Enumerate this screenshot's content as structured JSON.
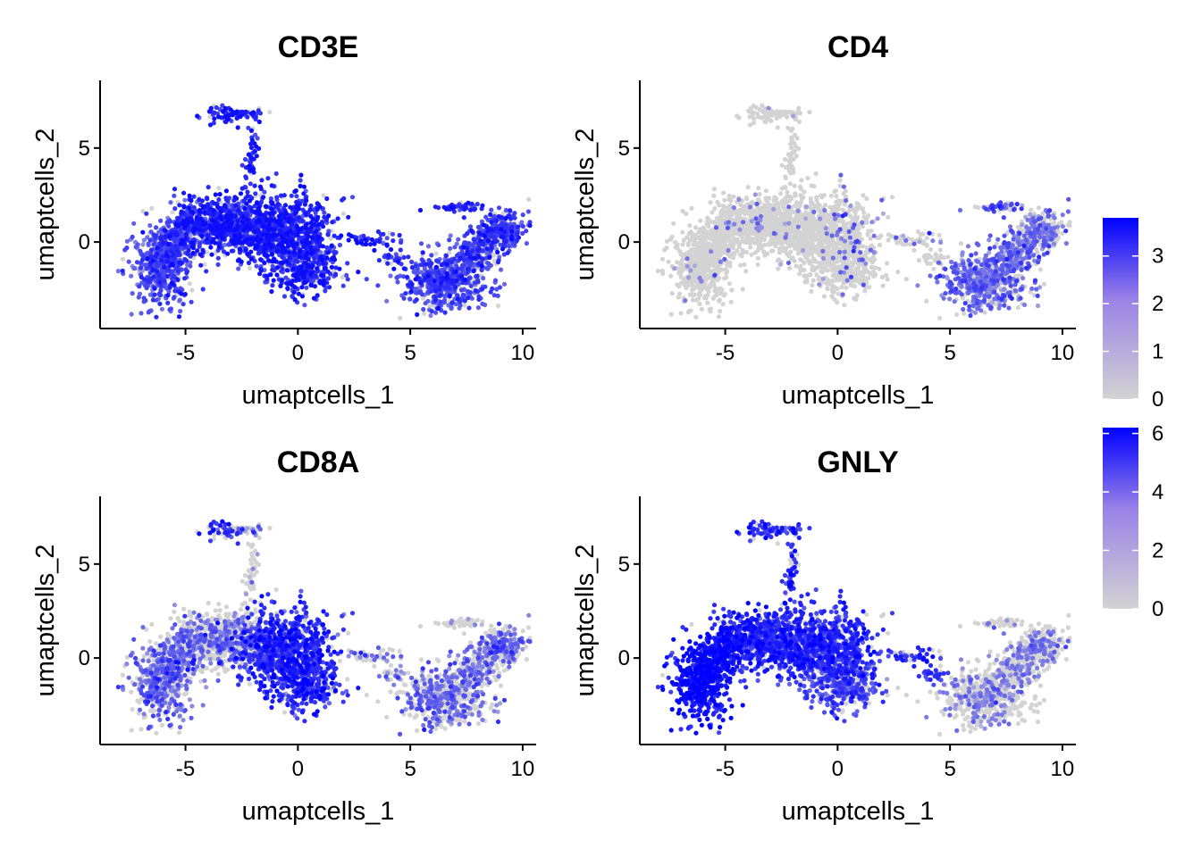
{
  "chart_data": [
    {
      "type": "scatter",
      "title": "CD3E",
      "xlabel": "umaptcells_1",
      "ylabel": "umaptcells_2",
      "xlim": [
        -8.8,
        10.6
      ],
      "ylim": [
        -4.6,
        8.6
      ],
      "xticks": [
        "-5",
        "0",
        "5",
        "10"
      ],
      "yticks": [
        "0",
        "5"
      ],
      "expression_max": 3.8,
      "legend": {
        "ticks": [
          "0",
          "1",
          "2",
          "3"
        ],
        "low_color": "#d3d3d3",
        "high_color": "#0000ff"
      },
      "points": []
    },
    {
      "type": "scatter",
      "title": "CD4",
      "xlabel": "umaptcells_1",
      "ylabel": "umaptcells_2",
      "xlim": [
        -8.8,
        10.6
      ],
      "ylim": [
        -4.6,
        8.6
      ],
      "xticks": [
        "-5",
        "0",
        "5",
        "10"
      ],
      "yticks": [
        "0",
        "5"
      ],
      "expression_max": 3.8,
      "points": []
    },
    {
      "type": "scatter",
      "title": "CD8A",
      "xlabel": "umaptcells_1",
      "ylabel": "umaptcells_2",
      "xlim": [
        -8.8,
        10.6
      ],
      "ylim": [
        -4.6,
        8.6
      ],
      "xticks": [
        "-5",
        "0",
        "5",
        "10"
      ],
      "yticks": [
        "0",
        "5"
      ],
      "expression_max": 6.2,
      "legend": {
        "ticks": [
          "0",
          "2",
          "4",
          "6"
        ],
        "low_color": "#d3d3d3",
        "high_color": "#0000ff"
      },
      "points": []
    },
    {
      "type": "scatter",
      "title": "GNLY",
      "xlabel": "umaptcells_1",
      "ylabel": "umaptcells_2",
      "xlim": [
        -8.8,
        10.6
      ],
      "ylim": [
        -4.6,
        8.6
      ],
      "xticks": [
        "-5",
        "0",
        "5",
        "10"
      ],
      "yticks": [
        "0",
        "5"
      ],
      "expression_max": 6.2,
      "points": []
    }
  ]
}
